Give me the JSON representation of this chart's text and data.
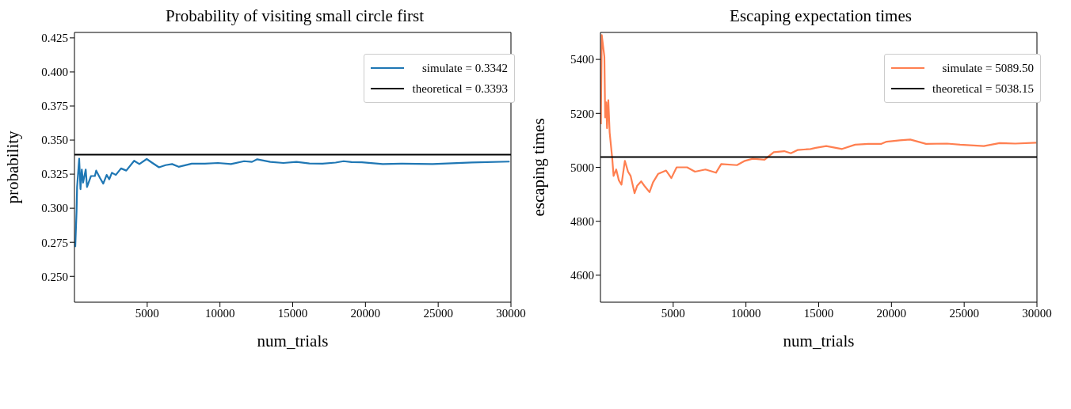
{
  "chart_data": [
    {
      "type": "line",
      "title": "Probability of visiting small circle first",
      "xlabel": "num_trials",
      "ylabel": "probability",
      "xlim": [
        0,
        30000
      ],
      "xticks": [
        5000,
        10000,
        15000,
        20000,
        25000,
        30000
      ],
      "ylim": [
        0.231,
        0.429
      ],
      "yticks": [
        {
          "value": 0.25,
          "label": "0.250"
        },
        {
          "value": 0.275,
          "label": "0.275"
        },
        {
          "value": 0.3,
          "label": "0.300"
        },
        {
          "value": 0.325,
          "label": "0.325"
        },
        {
          "value": 0.35,
          "label": "0.350"
        },
        {
          "value": 0.375,
          "label": "0.375"
        },
        {
          "value": 0.4,
          "label": "0.400"
        },
        {
          "value": 0.425,
          "label": "0.425"
        }
      ],
      "grid": false,
      "legend": "top right",
      "series": [
        {
          "name": "simulate = 0.3342",
          "color": "#1f77b4",
          "x": [
            54,
            145,
            180,
            324,
            415,
            504,
            594,
            774,
            863,
            1133,
            1403,
            1493,
            1763,
            1979,
            2213,
            2393,
            2573,
            2842,
            3202,
            3562,
            4101,
            4461,
            4965,
            5359,
            5812,
            6260,
            6710,
            7160,
            8060,
            8960,
            9860,
            10760,
            11660,
            12200,
            12560,
            13460,
            14360,
            15260,
            16150,
            17050,
            17950,
            18500,
            19040,
            19750,
            21190,
            22450,
            24610,
            27310,
            29910
          ],
          "values": [
            0.2715,
            0.298,
            0.3155,
            0.3364,
            0.314,
            0.3284,
            0.3188,
            0.3284,
            0.3155,
            0.3236,
            0.3236,
            0.3276,
            0.322,
            0.318,
            0.3244,
            0.3212,
            0.326,
            0.3244,
            0.3292,
            0.3276,
            0.3348,
            0.3324,
            0.3361,
            0.3332,
            0.33,
            0.3316,
            0.3324,
            0.3304,
            0.3327,
            0.3327,
            0.3332,
            0.3324,
            0.3345,
            0.334,
            0.3359,
            0.334,
            0.3332,
            0.334,
            0.3328,
            0.3327,
            0.3335,
            0.3345,
            0.3338,
            0.3337,
            0.3324,
            0.3327,
            0.3324,
            0.3335,
            0.3342
          ]
        },
        {
          "name": "theoretical = 0.3393",
          "color": "#000000",
          "x": [
            0,
            30000
          ],
          "values": [
            0.3393,
            0.3393
          ]
        }
      ]
    },
    {
      "type": "line",
      "title": "Escaping expectation times",
      "xlabel": "num_trials",
      "ylabel": "escaping times",
      "xlim": [
        0,
        30000
      ],
      "xticks": [
        5000,
        10000,
        15000,
        20000,
        25000,
        30000
      ],
      "ylim": [
        4500,
        5500
      ],
      "yticks": [
        4600,
        4800,
        5000,
        5200,
        5400
      ],
      "grid": false,
      "legend": "top right",
      "series": [
        {
          "name": "simulate = 5089.50",
          "color": "#ff7f50",
          "x": [
            30,
            90,
            270,
            325,
            397,
            451,
            541,
            632,
            812,
            902,
            1083,
            1263,
            1444,
            1678,
            1895,
            2075,
            2345,
            2527,
            2798,
            3068,
            3373,
            3610,
            3970,
            4510,
            4873,
            5235,
            5955,
            6497,
            7218,
            7940,
            8300,
            9383,
            9924,
            10466,
            11278,
            11911,
            12633,
            13085,
            13536,
            14440,
            14797,
            15520,
            16605,
            17504,
            18408,
            19310,
            19670,
            20574,
            21294,
            22377,
            23822,
            24726,
            26350,
            27433,
            28516,
            29957
          ],
          "values": [
            5160,
            5490,
            5410,
            5185,
            5241,
            5145,
            5249,
            5129,
            5032,
            4968,
            4992,
            4952,
            4936,
            5024,
            4984,
            4968,
            4904,
            4932,
            4948,
            4928,
            4908,
            4944,
            4976,
            4988,
            4960,
            5000,
            5000,
            4984,
            4992,
            4980,
            5012,
            5008,
            5024,
            5032,
            5028,
            5056,
            5060,
            5052,
            5064,
            5068,
            5072,
            5079,
            5068,
            5084,
            5087,
            5087,
            5095,
            5100,
            5103,
            5087,
            5088,
            5084,
            5079,
            5090,
            5088,
            5091
          ]
        },
        {
          "name": "theoretical = 5038.15",
          "color": "#000000",
          "x": [
            0,
            30000
          ],
          "values": [
            5038.15,
            5038.15
          ]
        }
      ]
    }
  ]
}
